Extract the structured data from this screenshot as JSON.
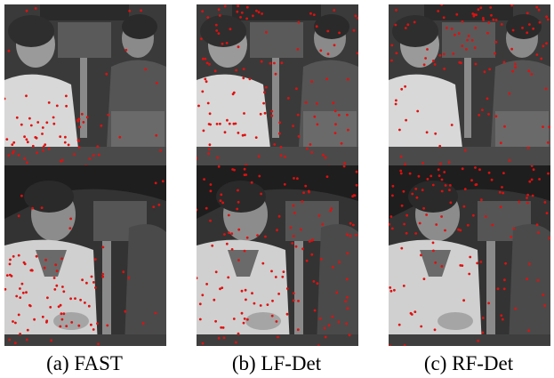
{
  "figure": {
    "captions": [
      "(a) FAST",
      "(b) LF-Det",
      "(c) RF-Det"
    ],
    "point_color": "#e01010"
  }
}
